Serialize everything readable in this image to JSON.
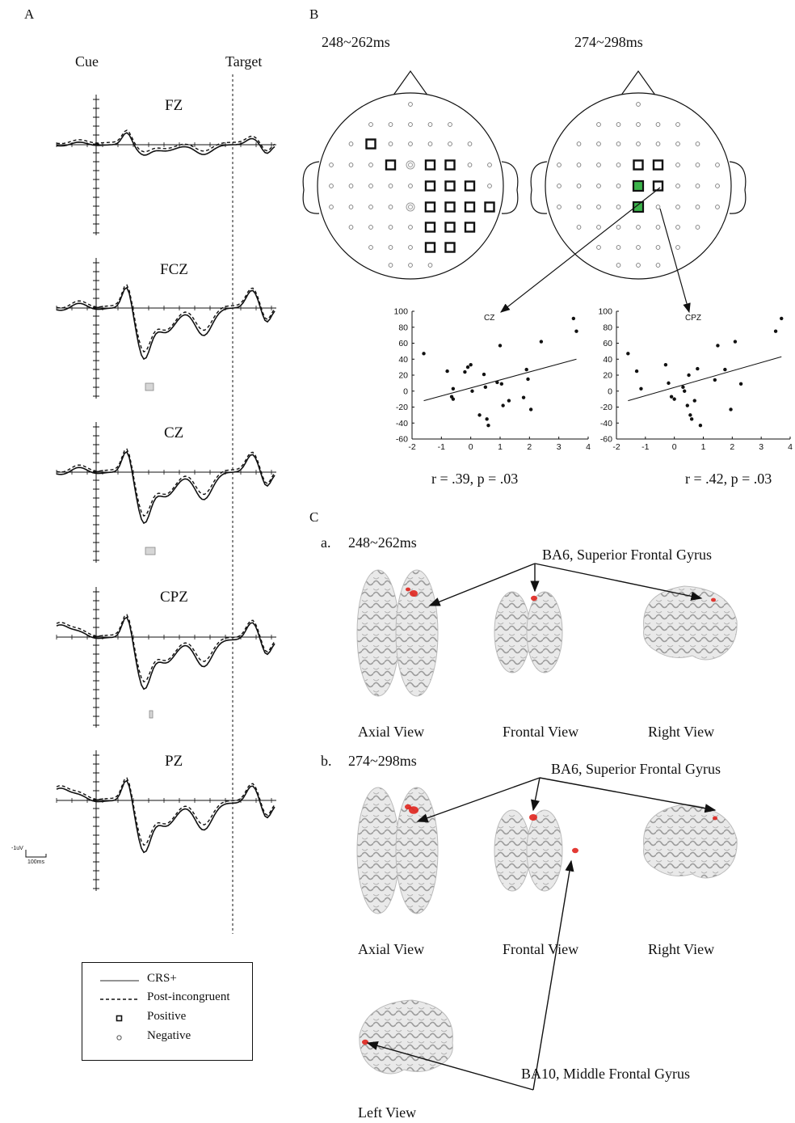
{
  "panel_labels": {
    "A": "A",
    "B": "B",
    "C": "C"
  },
  "panel_a": {
    "cue_label": "Cue",
    "target_label": "Target",
    "channels": [
      "FZ",
      "FCZ",
      "CZ",
      "CPZ",
      "PZ"
    ],
    "scale_amplitude": "-1uV",
    "scale_time": "100ms"
  },
  "legend": {
    "items": [
      {
        "label": "CRS+",
        "symbol": "solid-line"
      },
      {
        "label": "Post-incongruent",
        "symbol": "dashed-line"
      },
      {
        "label": "Positive",
        "symbol": "square-marker"
      },
      {
        "label": "Negative",
        "symbol": "circle-marker"
      }
    ]
  },
  "panel_b": {
    "left_window": "248~262ms",
    "right_window": "274~298ms",
    "left_stat": "r = .39, p = .03",
    "right_stat": "r = .42, p = .03",
    "highlight_color": "#3bb34a"
  },
  "chart_data": [
    {
      "type": "scatter",
      "title": "CZ",
      "xlim": [
        -2,
        4
      ],
      "ylim": [
        -60,
        100
      ],
      "xticks": [
        -2,
        -1,
        0,
        1,
        2,
        3,
        4
      ],
      "yticks": [
        100,
        80,
        60,
        40,
        20,
        0,
        -20,
        -40,
        -60
      ],
      "x": [
        -1.6,
        -0.8,
        -0.6,
        -0.65,
        -0.6,
        -0.2,
        -0.1,
        0.0,
        0.05,
        0.3,
        0.45,
        0.5,
        0.55,
        0.6,
        0.9,
        1.0,
        1.05,
        1.1,
        1.3,
        1.8,
        1.9,
        1.95,
        2.05,
        2.4,
        3.5,
        3.6
      ],
      "y": [
        47,
        25,
        3,
        -7,
        -10,
        24,
        30,
        33,
        0,
        -30,
        21,
        5,
        -35,
        -43,
        11,
        57,
        9,
        -18,
        -12,
        -8,
        27,
        15,
        -23,
        62,
        91,
        75
      ],
      "fit_line": {
        "x": [
          -1.6,
          3.6
        ],
        "y": [
          -12,
          40
        ]
      }
    },
    {
      "type": "scatter",
      "title": "CPZ",
      "xlim": [
        -2,
        4
      ],
      "ylim": [
        -60,
        100
      ],
      "xticks": [
        -2,
        -1,
        0,
        1,
        2,
        3,
        4
      ],
      "yticks": [
        100,
        80,
        60,
        40,
        20,
        0,
        -20,
        -40,
        -60
      ],
      "x": [
        -1.6,
        -1.3,
        -1.15,
        -0.3,
        -0.2,
        -0.1,
        0.0,
        0.3,
        0.35,
        0.45,
        0.5,
        0.55,
        0.6,
        0.7,
        0.8,
        0.9,
        1.4,
        1.5,
        1.75,
        1.95,
        2.1,
        2.3,
        3.5,
        3.7
      ],
      "y": [
        47,
        25,
        3,
        33,
        10,
        -7,
        -10,
        5,
        0,
        -18,
        20,
        -30,
        -35,
        -12,
        28,
        -43,
        14,
        57,
        27,
        -23,
        62,
        9,
        75,
        91
      ],
      "fit_line": {
        "x": [
          -1.6,
          3.7
        ],
        "y": [
          -12,
          43
        ]
      }
    }
  ],
  "panel_c": {
    "a_label": "a.",
    "a_window": "248~262ms",
    "b_label": "b.",
    "b_window": "274~298ms",
    "ba6_label": "BA6, Superior Frontal Gyrus",
    "ba10_label": "BA10, Middle Frontal Gyrus",
    "views": {
      "axial": "Axial View",
      "frontal": "Frontal View",
      "right": "Right View",
      "left": "Left View"
    },
    "activation_color": "#e0251e"
  }
}
